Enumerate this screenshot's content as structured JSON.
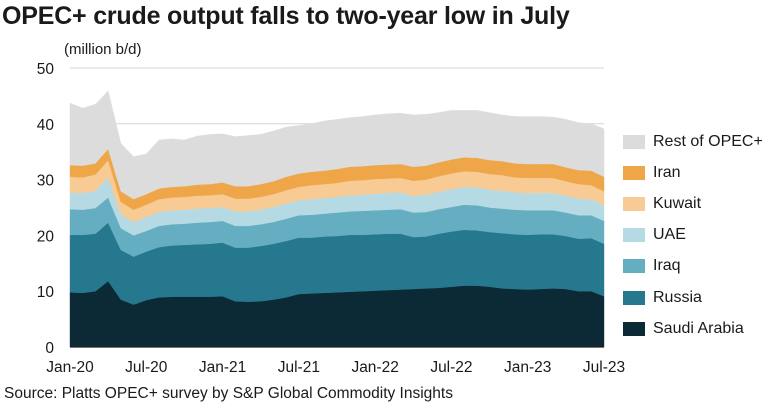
{
  "title": "OPEC+ crude output falls to two-year low in July",
  "unit_label": "(million b/d)",
  "source": "Source: Platts OPEC+ survey by S&P Global Commodity Insights",
  "chart_data": {
    "type": "area",
    "stacked": true,
    "title": "OPEC+ crude output falls to two-year low in July",
    "ylabel": "(million b/d)",
    "ylim": [
      0,
      50
    ],
    "yticks": [
      0,
      10,
      20,
      30,
      40,
      50
    ],
    "xtick_labels": [
      "Jan-20",
      "Jul-20",
      "Jan-21",
      "Jul-21",
      "Jan-22",
      "Jul-22",
      "Jan-23",
      "Jul-23"
    ],
    "xtick_positions": [
      0,
      6,
      12,
      18,
      24,
      30,
      36,
      42
    ],
    "grid": "horizontal",
    "legend_position": "right",
    "x": [
      "Jan-20",
      "Feb-20",
      "Mar-20",
      "Apr-20",
      "May-20",
      "Jun-20",
      "Jul-20",
      "Aug-20",
      "Sep-20",
      "Oct-20",
      "Nov-20",
      "Dec-20",
      "Jan-21",
      "Feb-21",
      "Mar-21",
      "Apr-21",
      "May-21",
      "Jun-21",
      "Jul-21",
      "Aug-21",
      "Sep-21",
      "Oct-21",
      "Nov-21",
      "Dec-21",
      "Jan-22",
      "Feb-22",
      "Mar-22",
      "Apr-22",
      "May-22",
      "Jun-22",
      "Jul-22",
      "Aug-22",
      "Sep-22",
      "Oct-22",
      "Nov-22",
      "Dec-22",
      "Jan-23",
      "Feb-23",
      "Mar-23",
      "Apr-23",
      "May-23",
      "Jun-23",
      "Jul-23"
    ],
    "series": [
      {
        "name": "Saudi Arabia",
        "color": "#0c2a35",
        "values": [
          9.8,
          9.7,
          10.0,
          11.8,
          8.5,
          7.6,
          8.4,
          8.9,
          9.0,
          9.0,
          9.0,
          9.0,
          9.1,
          8.2,
          8.1,
          8.2,
          8.5,
          8.9,
          9.5,
          9.6,
          9.7,
          9.8,
          9.9,
          10.0,
          10.1,
          10.2,
          10.3,
          10.4,
          10.5,
          10.6,
          10.8,
          11.0,
          11.0,
          10.8,
          10.5,
          10.4,
          10.3,
          10.4,
          10.5,
          10.4,
          10.0,
          10.0,
          9.1
        ]
      },
      {
        "name": "Russia",
        "color": "#26788f",
        "values": [
          10.3,
          10.4,
          10.3,
          10.5,
          8.9,
          8.6,
          8.7,
          9.0,
          9.2,
          9.3,
          9.4,
          9.5,
          9.6,
          9.6,
          9.7,
          9.9,
          10.0,
          10.1,
          10.1,
          10.0,
          10.1,
          10.1,
          10.2,
          10.1,
          10.1,
          10.1,
          10.0,
          9.3,
          9.3,
          9.7,
          9.9,
          10.0,
          9.9,
          9.8,
          9.9,
          9.8,
          9.8,
          9.8,
          9.7,
          9.5,
          9.4,
          9.5,
          9.4
        ]
      },
      {
        "name": "Iraq",
        "color": "#65aec1",
        "values": [
          4.6,
          4.5,
          4.6,
          4.5,
          3.9,
          3.8,
          3.7,
          3.8,
          3.8,
          3.8,
          3.9,
          3.9,
          3.9,
          3.9,
          3.9,
          3.9,
          3.9,
          4.0,
          4.0,
          4.1,
          4.1,
          4.2,
          4.2,
          4.3,
          4.3,
          4.3,
          4.4,
          4.4,
          4.4,
          4.4,
          4.4,
          4.5,
          4.5,
          4.4,
          4.4,
          4.4,
          4.4,
          4.3,
          4.3,
          4.2,
          4.2,
          4.1,
          4.1
        ]
      },
      {
        "name": "UAE",
        "color": "#b6dae3",
        "values": [
          3.0,
          3.0,
          3.1,
          3.6,
          2.5,
          2.4,
          2.5,
          2.5,
          2.5,
          2.5,
          2.5,
          2.5,
          2.5,
          2.6,
          2.6,
          2.6,
          2.7,
          2.7,
          2.7,
          2.8,
          2.8,
          2.8,
          2.9,
          2.9,
          3.0,
          3.0,
          3.0,
          3.0,
          3.1,
          3.1,
          3.2,
          3.2,
          3.2,
          3.2,
          3.2,
          3.1,
          3.1,
          3.1,
          3.1,
          3.0,
          3.0,
          2.9,
          2.8
        ]
      },
      {
        "name": "Kuwait",
        "color": "#f8cb95",
        "values": [
          2.8,
          2.8,
          2.9,
          3.1,
          2.2,
          2.2,
          2.2,
          2.3,
          2.3,
          2.3,
          2.3,
          2.3,
          2.3,
          2.3,
          2.3,
          2.3,
          2.3,
          2.4,
          2.4,
          2.5,
          2.5,
          2.5,
          2.6,
          2.6,
          2.6,
          2.6,
          2.6,
          2.7,
          2.7,
          2.8,
          2.8,
          2.8,
          2.8,
          2.8,
          2.8,
          2.7,
          2.7,
          2.7,
          2.7,
          2.6,
          2.6,
          2.5,
          2.5
        ]
      },
      {
        "name": "Iran",
        "color": "#eea649",
        "values": [
          2.1,
          2.1,
          2.0,
          2.0,
          1.9,
          1.9,
          1.9,
          1.9,
          1.9,
          1.9,
          2.0,
          2.0,
          2.1,
          2.2,
          2.2,
          2.3,
          2.3,
          2.4,
          2.4,
          2.4,
          2.4,
          2.5,
          2.5,
          2.5,
          2.5,
          2.5,
          2.5,
          2.5,
          2.5,
          2.5,
          2.5,
          2.5,
          2.5,
          2.5,
          2.5,
          2.5,
          2.5,
          2.5,
          2.5,
          2.5,
          2.5,
          2.6,
          2.6
        ]
      },
      {
        "name": "Rest of OPEC+",
        "color": "#dcdcdc",
        "values": [
          11.1,
          10.3,
          10.6,
          10.4,
          8.6,
          7.6,
          7.2,
          8.7,
          8.6,
          8.3,
          8.7,
          8.9,
          8.7,
          8.9,
          9.1,
          8.9,
          9.0,
          8.9,
          8.6,
          8.6,
          8.9,
          8.9,
          8.8,
          8.9,
          9.0,
          9.1,
          9.1,
          9.3,
          9.2,
          8.9,
          8.8,
          8.4,
          8.5,
          8.5,
          8.3,
          8.4,
          8.5,
          8.5,
          8.4,
          8.6,
          8.5,
          8.4,
          8.6
        ]
      }
    ]
  }
}
